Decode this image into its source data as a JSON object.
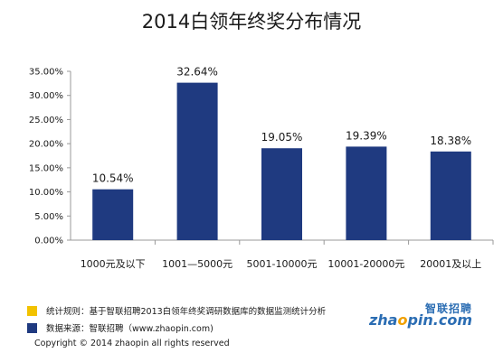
{
  "title": "2014白领年终奖分布情况",
  "chart_data": {
    "type": "bar",
    "categories": [
      "1000元及以下",
      "1001—5000元",
      "5001-10000元",
      "10001-20000元",
      "20001及以上"
    ],
    "values": [
      10.54,
      32.64,
      19.05,
      19.39,
      18.38
    ],
    "value_labels": [
      "10.54%",
      "32.64%",
      "19.05%",
      "19.39%",
      "18.38%"
    ],
    "yticks": [
      "0.00%",
      "5.00%",
      "10.00%",
      "15.00%",
      "20.00%",
      "25.00%",
      "30.00%",
      "35.00%"
    ],
    "ylim": [
      0,
      35
    ],
    "bar_color": "#1f3a80",
    "grid": false
  },
  "footer": {
    "rule_text": "统计规则：基于智联招聘2013白领年终奖调研数据库的数据监测统计分析",
    "rule_color": "#f2c200",
    "source_text": "数据来源：智联招聘（www.zhaopin.com)",
    "source_color": "#1f3a80",
    "copyright": "Copyright  © 2014 zhaopin all rights  reserved",
    "logo_cn": "智联招聘",
    "logo_en_pre": "zha",
    "logo_en_o": "o",
    "logo_en_post": "pin.com"
  }
}
